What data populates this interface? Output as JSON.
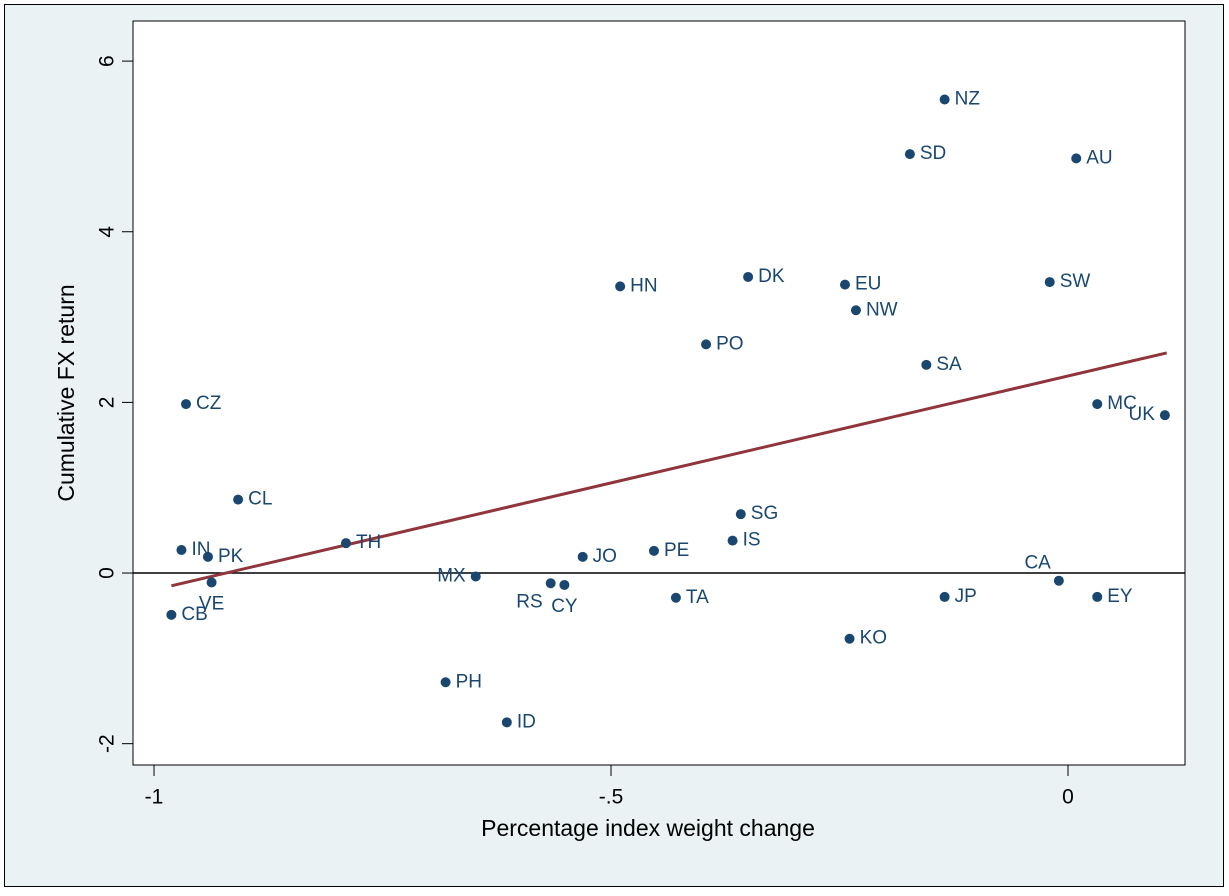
{
  "chart_data": {
    "type": "scatter",
    "xlabel": "Percentage index weight change",
    "ylabel": "Cumulative FX return",
    "labels": [
      "NZ",
      "SD",
      "AU",
      "DK",
      "HN",
      "EU",
      "NW",
      "SW",
      "PO",
      "SA",
      "CZ",
      "MC",
      "UK",
      "CL",
      "SG",
      "IS",
      "TH",
      "IN",
      "PK",
      "JO",
      "PE",
      "VE",
      "MX",
      "RS",
      "CY",
      "CA",
      "TA",
      "JP",
      "EY",
      "CB",
      "KO",
      "PH",
      "ID"
    ],
    "x": [
      -0.135,
      -0.173,
      0.009,
      -0.35,
      -0.49,
      -0.244,
      -0.232,
      -0.02,
      -0.396,
      -0.155,
      -0.965,
      0.032,
      0.106,
      -0.908,
      -0.358,
      -0.367,
      -0.79,
      -0.97,
      -0.941,
      -0.531,
      -0.453,
      -0.937,
      -0.648,
      -0.566,
      -0.551,
      -0.01,
      -0.429,
      -0.135,
      0.032,
      -0.981,
      -0.239,
      -0.681,
      -0.614
    ],
    "y": [
      5.55,
      4.91,
      4.86,
      3.47,
      3.36,
      3.38,
      3.08,
      3.41,
      2.68,
      2.44,
      1.98,
      1.98,
      1.85,
      0.86,
      0.69,
      0.38,
      0.35,
      0.27,
      0.19,
      0.19,
      0.26,
      -0.11,
      -0.04,
      -0.12,
      -0.14,
      -0.09,
      -0.29,
      -0.28,
      -0.28,
      -0.49,
      -0.77,
      -1.28,
      -1.75
    ],
    "color": "#1a476f",
    "fit": {
      "x": [
        -0.981,
        0.108
      ],
      "y": [
        -0.15,
        2.58
      ],
      "color": "#90353b"
    },
    "hline": 0,
    "xlim": [
      -1.023,
      0.128
    ],
    "ylim": [
      -2.25,
      6.47
    ],
    "xticks": [
      -1,
      {
        "value": -0.5,
        "label": "-.5"
      },
      0
    ],
    "yticks": [
      -2,
      0,
      2,
      4,
      6
    ]
  }
}
